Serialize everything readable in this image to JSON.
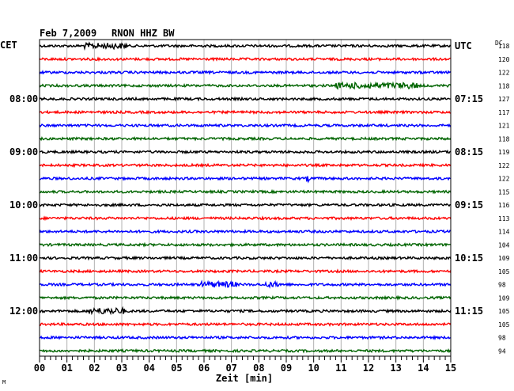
{
  "header": {
    "date": "Feb 7,2009",
    "station": "RNON HHZ BW"
  },
  "left_timezone": "CET",
  "right_timezone": "UTC",
  "dc_label": "DC",
  "corner_mark": "M",
  "chart_data": {
    "type": "line",
    "title": "Feb 7,2009   RNON HHZ BW",
    "xlabel": "Zeit [min]",
    "xlim": [
      0,
      15
    ],
    "x_ticks": [
      "00",
      "01",
      "02",
      "03",
      "04",
      "05",
      "06",
      "07",
      "08",
      "09",
      "10",
      "11",
      "12",
      "13",
      "14",
      "15"
    ],
    "grid": true,
    "trace_colors": [
      "#000000",
      "#ff0000",
      "#0000ff",
      "#006400"
    ],
    "left_hour_labels": [
      {
        "trace": 4,
        "label": "08:00"
      },
      {
        "trace": 8,
        "label": "09:00"
      },
      {
        "trace": 12,
        "label": "10:00"
      },
      {
        "trace": 16,
        "label": "11:00"
      },
      {
        "trace": 20,
        "label": "12:00"
      }
    ],
    "right_hour_labels": [
      {
        "trace": 0,
        "label": "UTC"
      },
      {
        "trace": 4,
        "label": "07:15"
      },
      {
        "trace": 8,
        "label": "08:15"
      },
      {
        "trace": 12,
        "label": "09:15"
      },
      {
        "trace": 16,
        "label": "10:15"
      },
      {
        "trace": 20,
        "label": "11:15"
      }
    ],
    "dc_values": [
      "118",
      "120",
      "122",
      "118",
      "127",
      "117",
      "121",
      "118",
      "119",
      "122",
      "122",
      "115",
      "116",
      "113",
      "114",
      "104",
      "109",
      "105",
      "98",
      "109",
      "105",
      "105",
      "98",
      "94"
    ],
    "events": [
      {
        "trace": 0,
        "start_min": 1.6,
        "end_min": 3.2,
        "amp": 2.2
      },
      {
        "trace": 3,
        "start_min": 10.8,
        "end_min": 13.8,
        "amp": 2.4
      },
      {
        "trace": 10,
        "start_min": 9.7,
        "end_min": 9.9,
        "amp": 2.5
      },
      {
        "trace": 18,
        "start_min": 5.9,
        "end_min": 7.2,
        "amp": 2.4
      },
      {
        "trace": 18,
        "start_min": 8.2,
        "end_min": 8.8,
        "amp": 2.0
      },
      {
        "trace": 20,
        "start_min": 1.8,
        "end_min": 3.1,
        "amp": 2.6
      }
    ]
  }
}
